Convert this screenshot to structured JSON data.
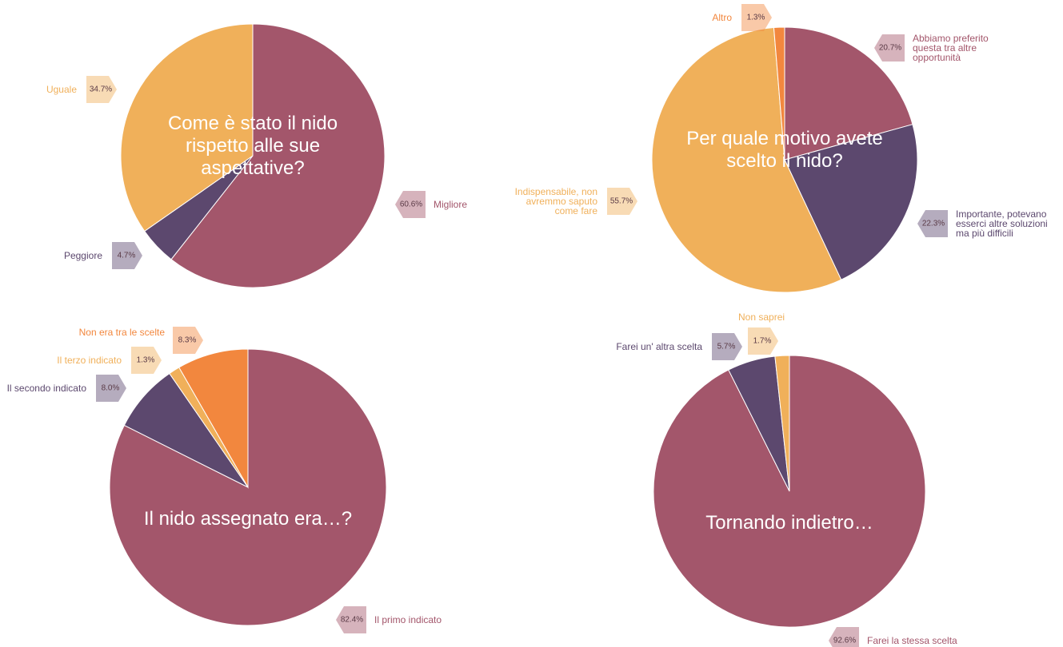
{
  "chart_data": [
    {
      "type": "pie",
      "title": "Come è stato il nido rispetto alle sue aspettative?",
      "categories": [
        "Migliore",
        "Peggiore",
        "Uguale"
      ],
      "values": [
        60.6,
        4.7,
        34.7
      ],
      "value_labels": [
        "60.6%",
        "4.7%",
        "34.7%"
      ],
      "colors": [
        "#a3566b",
        "#5c486e",
        "#f0b05a"
      ]
    },
    {
      "type": "pie",
      "title": "Per quale motivo avete scelto il nido?",
      "categories": [
        "Abbiamo preferito questa tra altre opportunità",
        "Importante, potevano esserci altre soluzioni ma più difficili",
        "Indispensabile, non avremmo saputo come fare",
        "Altro"
      ],
      "values": [
        20.7,
        22.3,
        55.7,
        1.3
      ],
      "value_labels": [
        "20.7%",
        "22.3%",
        "55.7%",
        "1.3%"
      ],
      "colors": [
        "#a3566b",
        "#5c486e",
        "#f0b05a",
        "#f2873e"
      ]
    },
    {
      "type": "pie",
      "title": "Il nido assegnato era…?",
      "categories": [
        "Il primo indicato",
        "Il secondo indicato",
        "Il terzo indicato",
        "Non era tra le scelte"
      ],
      "values": [
        82.4,
        8.0,
        1.3,
        8.3
      ],
      "value_labels": [
        "82.4%",
        "8.0%",
        "1.3%",
        "8.3%"
      ],
      "colors": [
        "#a3566b",
        "#5c486e",
        "#f0b05a",
        "#f2873e"
      ]
    },
    {
      "type": "pie",
      "title": "Tornando indietro…",
      "categories": [
        "Farei la stessa scelta",
        "Farei un' altra scelta",
        "Non saprei"
      ],
      "values": [
        92.6,
        5.7,
        1.7
      ],
      "value_labels": [
        "92.6%",
        "5.7%",
        "1.7%"
      ],
      "colors": [
        "#a3566b",
        "#5c486e",
        "#f0b05a"
      ]
    }
  ]
}
